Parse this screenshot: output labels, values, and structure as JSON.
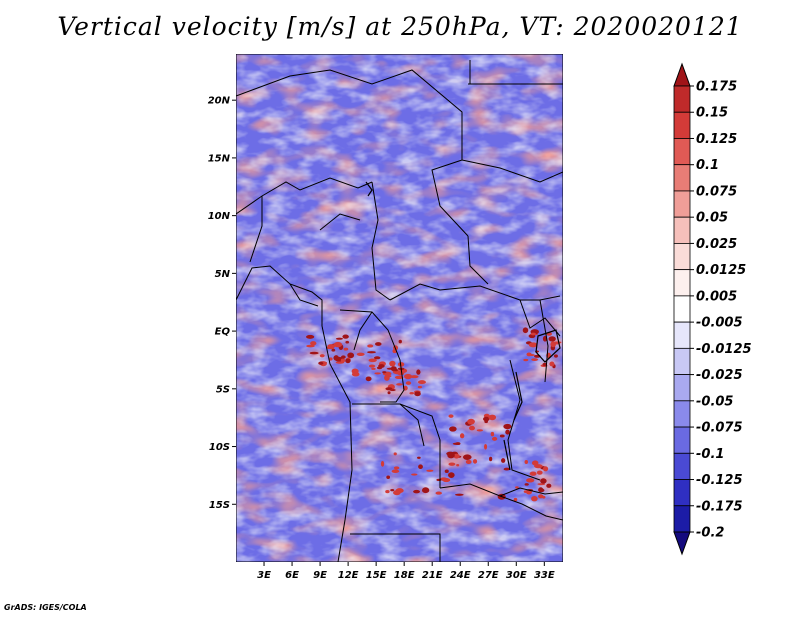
{
  "title": "Vertical velocity [m/s] at 250hPa, VT: 2020020121",
  "footer": "GrADS: IGES/COLA",
  "map": {
    "lon_range": [
      0,
      35
    ],
    "lat_range": [
      -20,
      24
    ],
    "lat_ticks": [
      {
        "value": 20,
        "label": "20N"
      },
      {
        "value": 15,
        "label": "15N"
      },
      {
        "value": 10,
        "label": "10N"
      },
      {
        "value": 5,
        "label": "5N"
      },
      {
        "value": 0,
        "label": "EQ"
      },
      {
        "value": -5,
        "label": "5S"
      },
      {
        "value": -10,
        "label": "10S"
      },
      {
        "value": -15,
        "label": "15S"
      }
    ],
    "lon_ticks": [
      {
        "value": 3,
        "label": "3E"
      },
      {
        "value": 6,
        "label": "6E"
      },
      {
        "value": 9,
        "label": "9E"
      },
      {
        "value": 12,
        "label": "12E"
      },
      {
        "value": 15,
        "label": "15E"
      },
      {
        "value": 18,
        "label": "18E"
      },
      {
        "value": 21,
        "label": "21E"
      },
      {
        "value": 24,
        "label": "24E"
      },
      {
        "value": 27,
        "label": "27E"
      },
      {
        "value": 30,
        "label": "30E"
      },
      {
        "value": 33,
        "label": "33E"
      }
    ]
  },
  "colorbar": {
    "labels": [
      "0.175",
      "0.15",
      "0.125",
      "0.1",
      "0.075",
      "0.05",
      "0.025",
      "0.0125",
      "0.005",
      "-0.005",
      "-0.0125",
      "-0.025",
      "-0.05",
      "-0.075",
      "-0.1",
      "-0.125",
      "-0.175",
      "-0.2"
    ],
    "colors": [
      "#a01418",
      "#bf2a2a",
      "#d33b38",
      "#e05a55",
      "#e87d76",
      "#f09e98",
      "#f6c0bb",
      "#fadcd8",
      "#fdf0ee",
      "#ffffff",
      "#e6e6fb",
      "#c8c8f5",
      "#a9a9f0",
      "#8a8aeb",
      "#6a6ae2",
      "#4a4ad4",
      "#2f2fc2",
      "#1c1ca6",
      "#140a7e"
    ]
  },
  "colors": {
    "positive": "#d9544f",
    "negative": "#6d6de6",
    "neutral": "#ffffff",
    "border": "#000000"
  }
}
